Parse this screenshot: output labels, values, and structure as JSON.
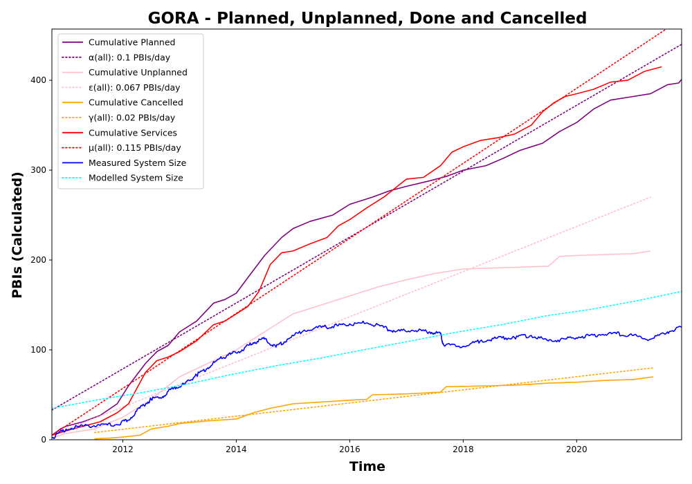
{
  "chart_data": {
    "type": "line",
    "title": "GORA - Planned, Unplanned, Done  and Cancelled",
    "xlabel": "Time",
    "ylabel": "PBIs (Calculated)",
    "xlim": [
      2010.75,
      2021.85
    ],
    "ylim": [
      0,
      457
    ],
    "xticks": [
      2012,
      2014,
      2016,
      2018,
      2020
    ],
    "yticks": [
      0,
      100,
      200,
      300,
      400
    ],
    "legend_position": "top-left",
    "grid": false,
    "series": [
      {
        "name": "Cumulative Planned",
        "color": "#800080",
        "style": "solid",
        "x": [
          2010.75,
          2010.9,
          2011.0,
          2011.3,
          2011.6,
          2011.9,
          2012.1,
          2012.4,
          2012.6,
          2012.8,
          2013.0,
          2013.3,
          2013.6,
          2013.8,
          2014.0,
          2014.2,
          2014.5,
          2014.8,
          2015.0,
          2015.3,
          2015.7,
          2016.0,
          2016.4,
          2016.7,
          2017.0,
          2017.4,
          2017.7,
          2018.0,
          2018.4,
          2018.7,
          2019.0,
          2019.4,
          2019.7,
          2020.0,
          2020.3,
          2020.6,
          2021.0,
          2021.3,
          2021.6,
          2021.8,
          2021.85
        ],
        "values": [
          5,
          12,
          15,
          20,
          27,
          40,
          60,
          85,
          98,
          105,
          120,
          132,
          152,
          156,
          163,
          180,
          205,
          225,
          235,
          243,
          250,
          262,
          270,
          277,
          282,
          288,
          293,
          300,
          305,
          313,
          322,
          330,
          343,
          353,
          368,
          378,
          382,
          385,
          395,
          397,
          401
        ]
      },
      {
        "name": "α(all): 0.1 PBIs/day",
        "color": "#800080",
        "style": "dotted",
        "x": [
          2010.75,
          2021.85
        ],
        "values": [
          33,
          440
        ]
      },
      {
        "name": "Cumulative Unplanned",
        "color": "#ffc0cb",
        "style": "solid",
        "x": [
          2010.75,
          2011.0,
          2011.5,
          2012.0,
          2012.5,
          2013.0,
          2013.5,
          2014.0,
          2014.5,
          2015.0,
          2015.5,
          2016.0,
          2016.5,
          2017.0,
          2017.5,
          2018.0,
          2018.5,
          2019.0,
          2019.5,
          2019.7,
          2020.0,
          2020.5,
          2021.0,
          2021.3
        ],
        "values": [
          2,
          7,
          12,
          25,
          45,
          70,
          85,
          100,
          120,
          140,
          150,
          160,
          170,
          178,
          185,
          190,
          191,
          192,
          193,
          204,
          205,
          206,
          207,
          210
        ]
      },
      {
        "name": "ε(all): 0.067 PBIs/day",
        "color": "#ffc0cb",
        "style": "dotted",
        "x": [
          2010.75,
          2021.3
        ],
        "values": [
          5,
          270
        ]
      },
      {
        "name": "Cumulative Cancelled",
        "color": "#ffa500",
        "style": "solid",
        "x": [
          2011.5,
          2011.8,
          2012.0,
          2012.3,
          2012.5,
          2012.8,
          2013.0,
          2013.5,
          2014.0,
          2014.3,
          2014.6,
          2015.0,
          2015.5,
          2016.0,
          2016.3,
          2016.4,
          2017.0,
          2017.6,
          2017.7,
          2018.5,
          2019.0,
          2019.5,
          2020.0,
          2020.5,
          2021.0,
          2021.35
        ],
        "values": [
          1,
          2,
          3,
          5,
          12,
          15,
          18,
          21,
          23,
          30,
          35,
          40,
          42,
          44,
          45,
          50,
          51,
          53,
          59,
          60,
          61,
          63,
          64,
          66,
          67,
          70
        ]
      },
      {
        "name": "γ(all): 0.02 PBIs/day",
        "color": "#ffa500",
        "style": "dotted",
        "x": [
          2011.5,
          2021.35
        ],
        "values": [
          8,
          80
        ]
      },
      {
        "name": "Cumulative Services",
        "color": "#ff0000",
        "style": "solid",
        "x": [
          2010.75,
          2011.0,
          2011.3,
          2011.6,
          2011.9,
          2012.1,
          2012.4,
          2012.6,
          2012.8,
          2013.0,
          2013.3,
          2013.6,
          2013.8,
          2014.0,
          2014.2,
          2014.4,
          2014.6,
          2014.8,
          2015.0,
          2015.3,
          2015.6,
          2015.8,
          2016.0,
          2016.3,
          2016.6,
          2016.8,
          2017.0,
          2017.3,
          2017.6,
          2017.8,
          2018.0,
          2018.3,
          2018.6,
          2018.9,
          2019.2,
          2019.4,
          2019.6,
          2019.8,
          2020.0,
          2020.3,
          2020.6,
          2020.9,
          2021.2,
          2021.5
        ],
        "values": [
          5,
          10,
          15,
          20,
          30,
          40,
          75,
          88,
          92,
          98,
          110,
          128,
          132,
          140,
          148,
          165,
          195,
          208,
          210,
          218,
          225,
          238,
          245,
          258,
          270,
          280,
          290,
          292,
          305,
          320,
          326,
          333,
          336,
          340,
          350,
          365,
          375,
          382,
          385,
          390,
          398,
          400,
          410,
          415
        ]
      },
      {
        "name": "μ(all): 0.115 PBIs/day",
        "color": "#ff0000",
        "style": "dotted",
        "x": [
          2010.75,
          2021.7
        ],
        "values": [
          5,
          462
        ]
      },
      {
        "name": "Measured System Size",
        "color": "#0000ff",
        "style": "solid",
        "x": [
          2010.75,
          2011.0,
          2011.3,
          2011.6,
          2011.9,
          2012.1,
          2012.3,
          2012.5,
          2012.7,
          2012.9,
          2013.1,
          2013.3,
          2013.5,
          2013.7,
          2013.9,
          2014.1,
          2014.3,
          2014.5,
          2014.7,
          2014.9,
          2015.2,
          2015.5,
          2015.8,
          2016.0,
          2016.3,
          2016.6,
          2016.8,
          2017.1,
          2017.4,
          2017.6,
          2017.65,
          2018.0,
          2018.3,
          2018.6,
          2018.9,
          2019.2,
          2019.5,
          2019.8,
          2020.1,
          2020.4,
          2020.7,
          2021.0,
          2021.3,
          2021.6,
          2021.85
        ],
        "values": [
          2,
          12,
          15,
          16,
          17,
          22,
          35,
          45,
          48,
          58,
          62,
          72,
          80,
          90,
          95,
          100,
          108,
          112,
          103,
          112,
          122,
          125,
          127,
          129,
          130,
          125,
          120,
          122,
          120,
          118,
          106,
          104,
          110,
          113,
          114,
          116,
          110,
          112,
          115,
          117,
          118,
          116,
          112,
          120,
          125
        ]
      },
      {
        "name": "Modelled System Size",
        "color": "#00ffff",
        "style": "dotted",
        "x": [
          2010.75,
          2021.85
        ],
        "values": [
          35,
          165
        ]
      }
    ]
  }
}
